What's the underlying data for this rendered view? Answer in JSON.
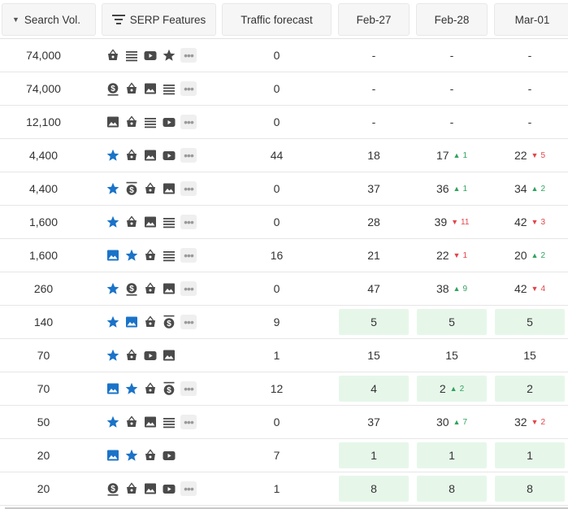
{
  "header": {
    "search_vol": "Search Vol.",
    "serp_features": "SERP Features",
    "traffic_forecast": "Traffic forecast",
    "dates": [
      "Feb-27",
      "Feb-28",
      "Mar-01"
    ]
  },
  "colors": {
    "featured": "#1a73c8",
    "icon": "#4a4a4a",
    "up": "#31a35f",
    "down": "#e0464b",
    "highlight": "#e6f7ea"
  },
  "rows": [
    {
      "vol": "74,000",
      "features": [
        "shopping",
        "list",
        "video",
        "star-gray"
      ],
      "more": true,
      "traffic": "0",
      "d": [
        {
          "v": "-"
        },
        {
          "v": "-"
        },
        {
          "v": "-"
        }
      ]
    },
    {
      "vol": "74,000",
      "features": [
        "dollar",
        "shopping",
        "image",
        "list"
      ],
      "more": true,
      "traffic": "0",
      "d": [
        {
          "v": "-"
        },
        {
          "v": "-"
        },
        {
          "v": "-"
        }
      ]
    },
    {
      "vol": "12,100",
      "features": [
        "image",
        "shopping",
        "list",
        "video"
      ],
      "more": true,
      "traffic": "0",
      "d": [
        {
          "v": "-"
        },
        {
          "v": "-"
        },
        {
          "v": "-"
        }
      ]
    },
    {
      "vol": "4,400",
      "features": [
        "star-blue",
        "shopping",
        "image",
        "video"
      ],
      "more": true,
      "traffic": "44",
      "d": [
        {
          "v": "18"
        },
        {
          "v": "17",
          "ch": "1",
          "dir": "up"
        },
        {
          "v": "22",
          "ch": "5",
          "dir": "down"
        }
      ]
    },
    {
      "vol": "4,400",
      "features": [
        "star-blue",
        "dollar-top",
        "shopping",
        "image"
      ],
      "more": true,
      "traffic": "0",
      "d": [
        {
          "v": "37"
        },
        {
          "v": "36",
          "ch": "1",
          "dir": "up"
        },
        {
          "v": "34",
          "ch": "2",
          "dir": "up"
        }
      ]
    },
    {
      "vol": "1,600",
      "features": [
        "star-blue",
        "shopping",
        "image",
        "list"
      ],
      "more": true,
      "traffic": "0",
      "d": [
        {
          "v": "28"
        },
        {
          "v": "39",
          "ch": "11",
          "dir": "down"
        },
        {
          "v": "42",
          "ch": "3",
          "dir": "down"
        }
      ]
    },
    {
      "vol": "1,600",
      "features": [
        "image-blue",
        "star-blue",
        "shopping",
        "list"
      ],
      "more": true,
      "traffic": "16",
      "d": [
        {
          "v": "21"
        },
        {
          "v": "22",
          "ch": "1",
          "dir": "down"
        },
        {
          "v": "20",
          "ch": "2",
          "dir": "up"
        }
      ]
    },
    {
      "vol": "260",
      "features": [
        "star-blue",
        "dollar",
        "shopping",
        "image"
      ],
      "more": true,
      "traffic": "0",
      "d": [
        {
          "v": "47"
        },
        {
          "v": "38",
          "ch": "9",
          "dir": "up"
        },
        {
          "v": "42",
          "ch": "4",
          "dir": "down"
        }
      ]
    },
    {
      "vol": "140",
      "features": [
        "star-blue",
        "image-blue",
        "shopping",
        "dollar-top"
      ],
      "more": true,
      "traffic": "9",
      "d": [
        {
          "v": "5",
          "hl": true
        },
        {
          "v": "5",
          "hl": true
        },
        {
          "v": "5",
          "hl": true
        }
      ]
    },
    {
      "vol": "70",
      "features": [
        "star-blue",
        "shopping",
        "video",
        "image"
      ],
      "more": false,
      "traffic": "1",
      "d": [
        {
          "v": "15"
        },
        {
          "v": "15"
        },
        {
          "v": "15"
        }
      ]
    },
    {
      "vol": "70",
      "features": [
        "image-blue",
        "star-blue",
        "shopping",
        "dollar-top"
      ],
      "more": true,
      "traffic": "12",
      "d": [
        {
          "v": "4",
          "hl": true
        },
        {
          "v": "2",
          "ch": "2",
          "dir": "up",
          "hl": true
        },
        {
          "v": "2",
          "hl": true
        }
      ]
    },
    {
      "vol": "50",
      "features": [
        "star-blue",
        "shopping",
        "image",
        "list"
      ],
      "more": true,
      "traffic": "0",
      "d": [
        {
          "v": "37"
        },
        {
          "v": "30",
          "ch": "7",
          "dir": "up"
        },
        {
          "v": "32",
          "ch": "2",
          "dir": "down"
        }
      ]
    },
    {
      "vol": "20",
      "features": [
        "image-blue",
        "star-blue",
        "shopping",
        "video"
      ],
      "more": false,
      "traffic": "7",
      "d": [
        {
          "v": "1",
          "hl": true
        },
        {
          "v": "1",
          "hl": true
        },
        {
          "v": "1",
          "hl": true
        }
      ]
    },
    {
      "vol": "20",
      "features": [
        "dollar",
        "shopping",
        "image",
        "video"
      ],
      "more": true,
      "traffic": "1",
      "d": [
        {
          "v": "8",
          "hl": true
        },
        {
          "v": "8",
          "hl": true
        },
        {
          "v": "8",
          "hl": true
        }
      ]
    }
  ]
}
